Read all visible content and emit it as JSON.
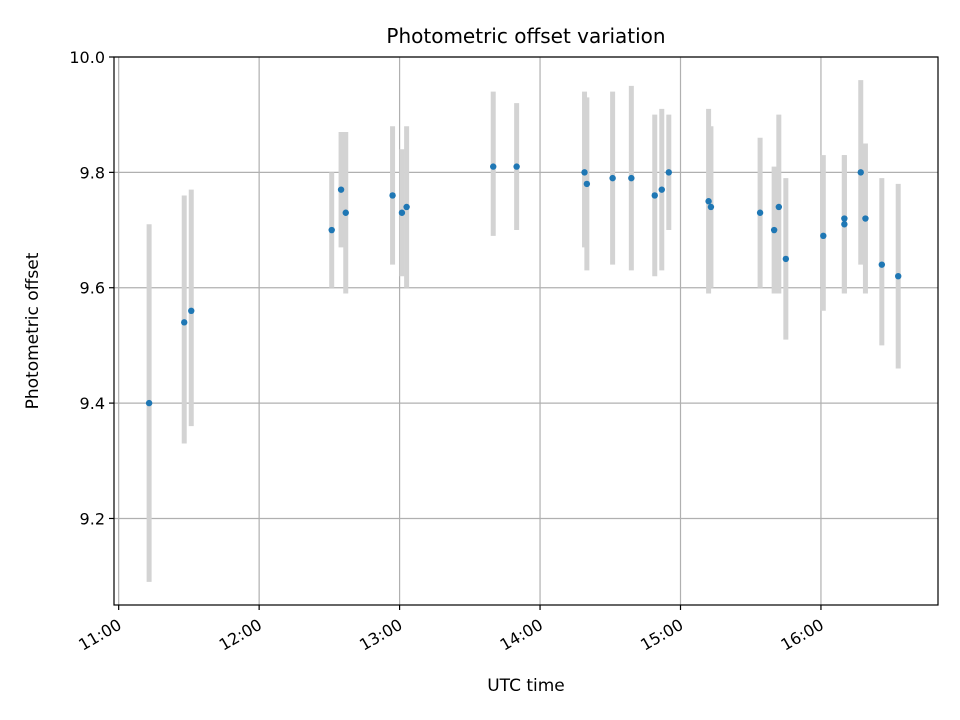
{
  "chart_data": {
    "type": "scatter",
    "title": "Photometric offset variation",
    "xlabel": "UTC time",
    "ylabel": "Photometric offset",
    "xlim": [
      "10:58",
      "16:50"
    ],
    "ylim": [
      9.05,
      10.0
    ],
    "x_ticks": [
      "11:00",
      "12:00",
      "13:00",
      "14:00",
      "15:00",
      "16:00"
    ],
    "y_ticks": [
      9.2,
      9.4,
      9.6,
      9.8,
      10.0
    ],
    "y_tick_labels": [
      "9.2",
      "9.4",
      "9.6",
      "9.8",
      "10.0"
    ],
    "grid": true,
    "colors": {
      "point": "#1f77b4",
      "errorbar": "#d3d3d3",
      "grid": "#b0b0b0"
    },
    "points": [
      {
        "t": "11:13",
        "y": 9.4,
        "lo": 9.09,
        "hi": 9.71
      },
      {
        "t": "11:28",
        "y": 9.54,
        "lo": 9.33,
        "hi": 9.76
      },
      {
        "t": "11:31",
        "y": 9.56,
        "lo": 9.36,
        "hi": 9.77
      },
      {
        "t": "12:31",
        "y": 9.7,
        "lo": 9.6,
        "hi": 9.8
      },
      {
        "t": "12:35",
        "y": 9.77,
        "lo": 9.67,
        "hi": 9.87
      },
      {
        "t": "12:37",
        "y": 9.73,
        "lo": 9.59,
        "hi": 9.87
      },
      {
        "t": "12:57",
        "y": 9.76,
        "lo": 9.64,
        "hi": 9.88
      },
      {
        "t": "13:01",
        "y": 9.73,
        "lo": 9.62,
        "hi": 9.84
      },
      {
        "t": "13:03",
        "y": 9.74,
        "lo": 9.6,
        "hi": 9.88
      },
      {
        "t": "13:40",
        "y": 9.81,
        "lo": 9.69,
        "hi": 9.94
      },
      {
        "t": "13:50",
        "y": 9.81,
        "lo": 9.7,
        "hi": 9.92
      },
      {
        "t": "14:19",
        "y": 9.8,
        "lo": 9.67,
        "hi": 9.94
      },
      {
        "t": "14:20",
        "y": 9.78,
        "lo": 9.63,
        "hi": 9.93
      },
      {
        "t": "14:31",
        "y": 9.79,
        "lo": 9.64,
        "hi": 9.94
      },
      {
        "t": "14:39",
        "y": 9.79,
        "lo": 9.63,
        "hi": 9.95
      },
      {
        "t": "14:49",
        "y": 9.76,
        "lo": 9.62,
        "hi": 9.9
      },
      {
        "t": "14:52",
        "y": 9.77,
        "lo": 9.63,
        "hi": 9.91
      },
      {
        "t": "14:55",
        "y": 9.8,
        "lo": 9.7,
        "hi": 9.9
      },
      {
        "t": "15:12",
        "y": 9.75,
        "lo": 9.59,
        "hi": 9.91
      },
      {
        "t": "15:13",
        "y": 9.74,
        "lo": 9.6,
        "hi": 9.88
      },
      {
        "t": "15:34",
        "y": 9.73,
        "lo": 9.6,
        "hi": 9.86
      },
      {
        "t": "15:40",
        "y": 9.7,
        "lo": 9.59,
        "hi": 9.81
      },
      {
        "t": "15:42",
        "y": 9.74,
        "lo": 9.59,
        "hi": 9.9
      },
      {
        "t": "15:45",
        "y": 9.65,
        "lo": 9.51,
        "hi": 9.79
      },
      {
        "t": "16:01",
        "y": 9.69,
        "lo": 9.56,
        "hi": 9.83
      },
      {
        "t": "16:10",
        "y": 9.72,
        "lo": 9.59,
        "hi": 9.83
      },
      {
        "t": "16:10",
        "y": 9.71,
        "lo": 9.59,
        "hi": 9.83
      },
      {
        "t": "16:17",
        "y": 9.8,
        "lo": 9.64,
        "hi": 9.96
      },
      {
        "t": "16:19",
        "y": 9.72,
        "lo": 9.59,
        "hi": 9.85
      },
      {
        "t": "16:26",
        "y": 9.64,
        "lo": 9.5,
        "hi": 9.79
      },
      {
        "t": "16:33",
        "y": 9.62,
        "lo": 9.46,
        "hi": 9.78
      }
    ]
  }
}
